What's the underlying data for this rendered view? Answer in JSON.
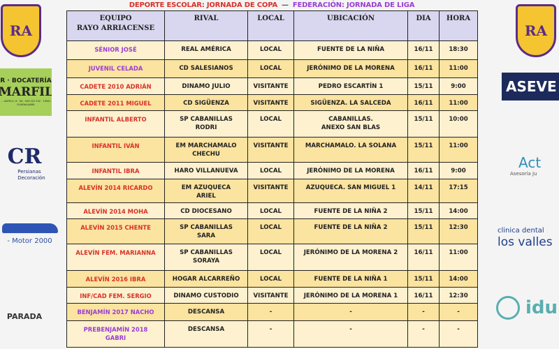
{
  "header": {
    "school": "DEPORTE ESCOLAR: JORNADA DE COPA",
    "separator": "—",
    "federation": "FEDERACIÓN: JORNADA DE LIGA"
  },
  "colors": {
    "school": "#d8322a",
    "federation": "#9a3ed2",
    "header_bg": "#d9d6ef",
    "row_light": "#fdf1cf",
    "row_dark": "#fbe3a0"
  },
  "columns": [
    "EQUIPO\nRAYO ARRIACENSE",
    "RIVAL",
    "LOCAL",
    "UBICACIÓN",
    "DIA",
    "HORA"
  ],
  "rows": [
    {
      "team": "SÉNIOR JOSÉ",
      "type": "federation",
      "rival": "REAL AMÉRICA",
      "local": "LOCAL",
      "place": "FUENTE DE LA NIÑA",
      "day": "16/11",
      "time": "18:30"
    },
    {
      "team": "JUVENIL CELADA",
      "type": "federation",
      "rival": "CD SALESIANOS",
      "local": "LOCAL",
      "place": "JERÓNIMO DE LA MORENA",
      "day": "16/11",
      "time": "11:00"
    },
    {
      "team": "CADETE 2010 ADRIÁN",
      "type": "school",
      "rival": "DINAMO JULIO",
      "local": "VISITANTE",
      "place": "PEDRO ESCARTÍN 1",
      "day": "15/11",
      "time": "9:00"
    },
    {
      "team": "CADETE 2011 MIGUEL",
      "type": "school",
      "rival": "CD SIGÜENZA",
      "local": "VISITANTE",
      "place": "SIGÜENZA. LA SALCEDA",
      "day": "16/11",
      "time": "11:00"
    },
    {
      "team": "INFANTIL ALBERTO",
      "type": "school",
      "rival": "SP CABANILLAS\nRODRI",
      "local": "LOCAL",
      "place": "CABANILLAS.\nANEXO SAN BLAS",
      "day": "15/11",
      "time": "10:00"
    },
    {
      "team": "INFANTIL IVÁN",
      "type": "school",
      "rival": "EM MARCHAMALO\nCHECHU",
      "local": "VISITANTE",
      "place": "MARCHAMALO. LA SOLANA",
      "day": "15/11",
      "time": "11:00"
    },
    {
      "team": "INFANTIL IBRA",
      "type": "school",
      "rival": "HARO VILLANUEVA",
      "local": "LOCAL",
      "place": "JERÓNIMO DE LA MORENA",
      "day": "16/11",
      "time": "9:00"
    },
    {
      "team": "ALEVÍN 2014 RICARDO",
      "type": "school",
      "rival": "EM AZUQUECA\nARIEL",
      "local": "VISITANTE",
      "place": "AZUQUECA. SAN MIGUEL 1",
      "day": "14/11",
      "time": "17:15"
    },
    {
      "team": "ALEVÍN 2014 MOHA",
      "type": "school",
      "rival": "CD DIOCESANO",
      "local": "LOCAL",
      "place": "FUENTE DE LA NIÑA  2",
      "day": "15/11",
      "time": "14:00"
    },
    {
      "team": "ALEVÍN 2015 CHENTE",
      "type": "school",
      "rival": "SP CABANILLAS\nSARA",
      "local": "LOCAL",
      "place": "FUENTE DE LA NIÑA 2",
      "day": "15/11",
      "time": "12:30"
    },
    {
      "team": "ALEVÍN FEM. MARIANNA",
      "type": "school",
      "rival": "SP CABANILLAS\nSORAYA",
      "local": "LOCAL",
      "place": "JERÓNIMO DE LA MORENA 2",
      "day": "16/11",
      "time": "11:00"
    },
    {
      "team": "ALEVÍN 2016 IBRA",
      "type": "school",
      "rival": "HOGAR ALCARREÑO",
      "local": "LOCAL",
      "place": "FUENTE DE LA NIÑA 1",
      "day": "15/11",
      "time": "14:00"
    },
    {
      "team": "INF/CAD FEM. SERGIO",
      "type": "school",
      "rival": "DINAMO CUSTODIO",
      "local": "VISITANTE",
      "place": "JERÓNIMO DE LA MORENA 1",
      "day": "16/11",
      "time": "12:30"
    },
    {
      "team": "BENJAMÍN 2017 NACHO",
      "type": "federation",
      "rival": "DESCANSA",
      "local": "-",
      "place": "-",
      "day": "-",
      "time": "-"
    },
    {
      "team": "PREBENJAMÍN 2018\nGABRI",
      "type": "federation",
      "rival": "DESCANSA",
      "local": "-",
      "place": "-",
      "day": "-",
      "time": "-"
    }
  ],
  "sponsors_left": [
    {
      "name": "R · BOCATERÍA",
      "name2": "MARFIL",
      "small": "... ANTELO, 6 · Tel.: 949 222 532 · 19001 GUADALAJARA"
    },
    {
      "name": "CR",
      "name2": "Persianas\nDecoración"
    },
    {
      "name": "- Motor 2000"
    },
    {
      "name": "PARADA"
    }
  ],
  "sponsors_right": [
    {
      "name": "ASEVE"
    },
    {
      "name": "Act",
      "name2": "Asesoría Ju"
    },
    {
      "name": "clinica dental",
      "name2": "los valles"
    },
    {
      "name": "idu"
    }
  ],
  "crest": {
    "letters": "RA"
  }
}
